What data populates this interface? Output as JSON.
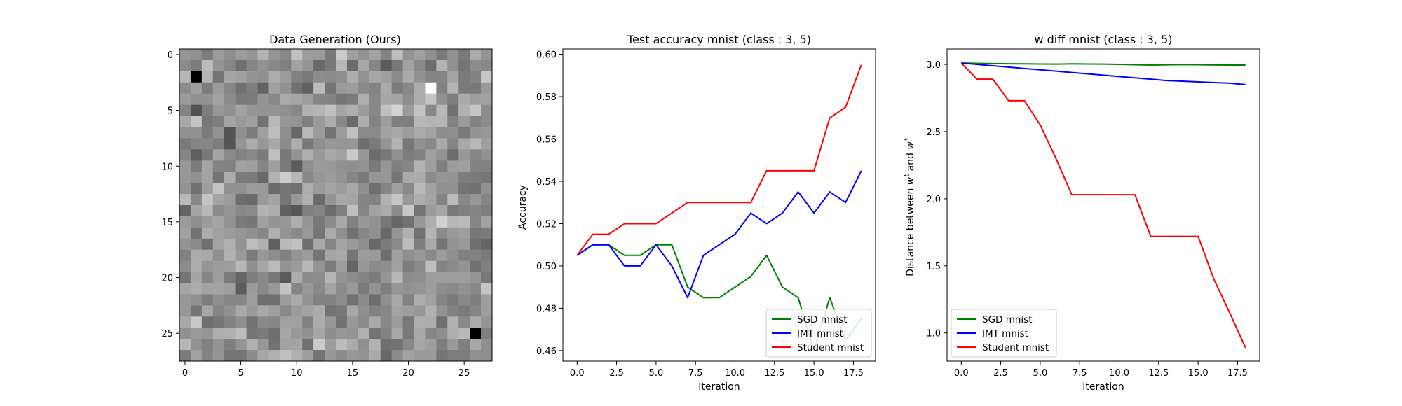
{
  "chart_data": [
    {
      "type": "heatmap",
      "title": "Data Generation (Ours)",
      "xlabel": "",
      "ylabel": "",
      "colormap": "gray",
      "rows": 28,
      "cols": 28,
      "xlim": [
        -0.5,
        27.5
      ],
      "ylim": [
        27.5,
        -0.5
      ],
      "xticks": [
        0,
        5,
        10,
        15,
        20,
        25
      ],
      "yticks": [
        0,
        5,
        10,
        15,
        20,
        25
      ],
      "notable_pixels": [
        {
          "row": 2,
          "col": 1,
          "value": "black"
        },
        {
          "row": 25,
          "col": 26,
          "value": "black"
        },
        {
          "row": 3,
          "col": 22,
          "value": "white"
        }
      ]
    },
    {
      "type": "line",
      "title": "Test accuracy mnist (class : 3, 5)",
      "xlabel": "Iteration",
      "ylabel": "Accuracy",
      "xlim": [
        -0.9,
        18.9
      ],
      "ylim": [
        0.455,
        0.6025
      ],
      "xticks": [
        "0.0",
        "2.5",
        "5.0",
        "7.5",
        "10.0",
        "12.5",
        "15.0",
        "17.5"
      ],
      "xtick_values": [
        0,
        2.5,
        5,
        7.5,
        10,
        12.5,
        15,
        17.5
      ],
      "yticks": [
        "0.46",
        "0.48",
        "0.50",
        "0.52",
        "0.54",
        "0.56",
        "0.58",
        "0.60"
      ],
      "ytick_values": [
        0.46,
        0.48,
        0.5,
        0.52,
        0.54,
        0.56,
        0.58,
        0.6
      ],
      "legend_position": "lower right",
      "x": [
        0,
        1,
        2,
        3,
        4,
        5,
        6,
        7,
        8,
        9,
        10,
        11,
        12,
        13,
        14,
        15,
        16,
        17,
        18
      ],
      "series": [
        {
          "name": "SGD mnist",
          "color": "#008000",
          "values": [
            0.505,
            0.51,
            0.51,
            0.505,
            0.505,
            0.51,
            0.51,
            0.49,
            0.485,
            0.485,
            0.49,
            0.495,
            0.505,
            0.49,
            0.485,
            0.46,
            0.485,
            0.465,
            0.475
          ]
        },
        {
          "name": "IMT mnist",
          "color": "#0000ff",
          "values": [
            0.505,
            0.51,
            0.51,
            0.5,
            0.5,
            0.51,
            0.5,
            0.485,
            0.505,
            0.51,
            0.515,
            0.525,
            0.52,
            0.525,
            0.535,
            0.525,
            0.535,
            0.53,
            0.545
          ]
        },
        {
          "name": "Student mnist",
          "color": "#ff0000",
          "values": [
            0.505,
            0.515,
            0.515,
            0.52,
            0.52,
            0.52,
            0.525,
            0.53,
            0.53,
            0.53,
            0.53,
            0.53,
            0.545,
            0.545,
            0.545,
            0.545,
            0.57,
            0.575,
            0.595
          ]
        }
      ]
    },
    {
      "type": "line",
      "title": "w diff mnist (class : 3, 5)",
      "xlabel": "Iteration",
      "ylabel": "Distance between w^t and w^*",
      "ylabel_parts": {
        "prefix": "Distance between ",
        "w": "w",
        "t": "t",
        "and": " and ",
        "star": "*"
      },
      "xlim": [
        -0.9,
        18.9
      ],
      "ylim": [
        0.79,
        3.115
      ],
      "xticks": [
        "0.0",
        "2.5",
        "5.0",
        "7.5",
        "10.0",
        "12.5",
        "15.0",
        "17.5"
      ],
      "xtick_values": [
        0,
        2.5,
        5,
        7.5,
        10,
        12.5,
        15,
        17.5
      ],
      "yticks": [
        "1.0",
        "1.5",
        "2.0",
        "2.5",
        "3.0"
      ],
      "ytick_values": [
        1.0,
        1.5,
        2.0,
        2.5,
        3.0
      ],
      "legend_position": "lower left",
      "x": [
        0,
        1,
        2,
        3,
        4,
        5,
        6,
        7,
        8,
        9,
        10,
        11,
        12,
        13,
        14,
        15,
        16,
        17,
        18
      ],
      "series": [
        {
          "name": "SGD mnist",
          "color": "#008000",
          "values": [
            3.01,
            3.008,
            3.006,
            3.005,
            3.004,
            3.003,
            3.002,
            3.004,
            3.003,
            3.002,
            3.0,
            2.998,
            2.995,
            2.997,
            2.999,
            2.998,
            2.996,
            2.995,
            2.995
          ]
        },
        {
          "name": "IMT mnist",
          "color": "#0000ff",
          "values": [
            3.01,
            3.0,
            2.99,
            2.98,
            2.97,
            2.96,
            2.95,
            2.94,
            2.93,
            2.92,
            2.91,
            2.9,
            2.89,
            2.88,
            2.875,
            2.87,
            2.865,
            2.86,
            2.85
          ]
        },
        {
          "name": "Student mnist",
          "color": "#ff0000",
          "values": [
            3.01,
            2.89,
            2.89,
            2.73,
            2.73,
            2.55,
            2.3,
            2.03,
            2.03,
            2.03,
            2.03,
            2.03,
            1.72,
            1.72,
            1.72,
            1.72,
            1.4,
            1.15,
            0.89
          ]
        }
      ]
    }
  ]
}
